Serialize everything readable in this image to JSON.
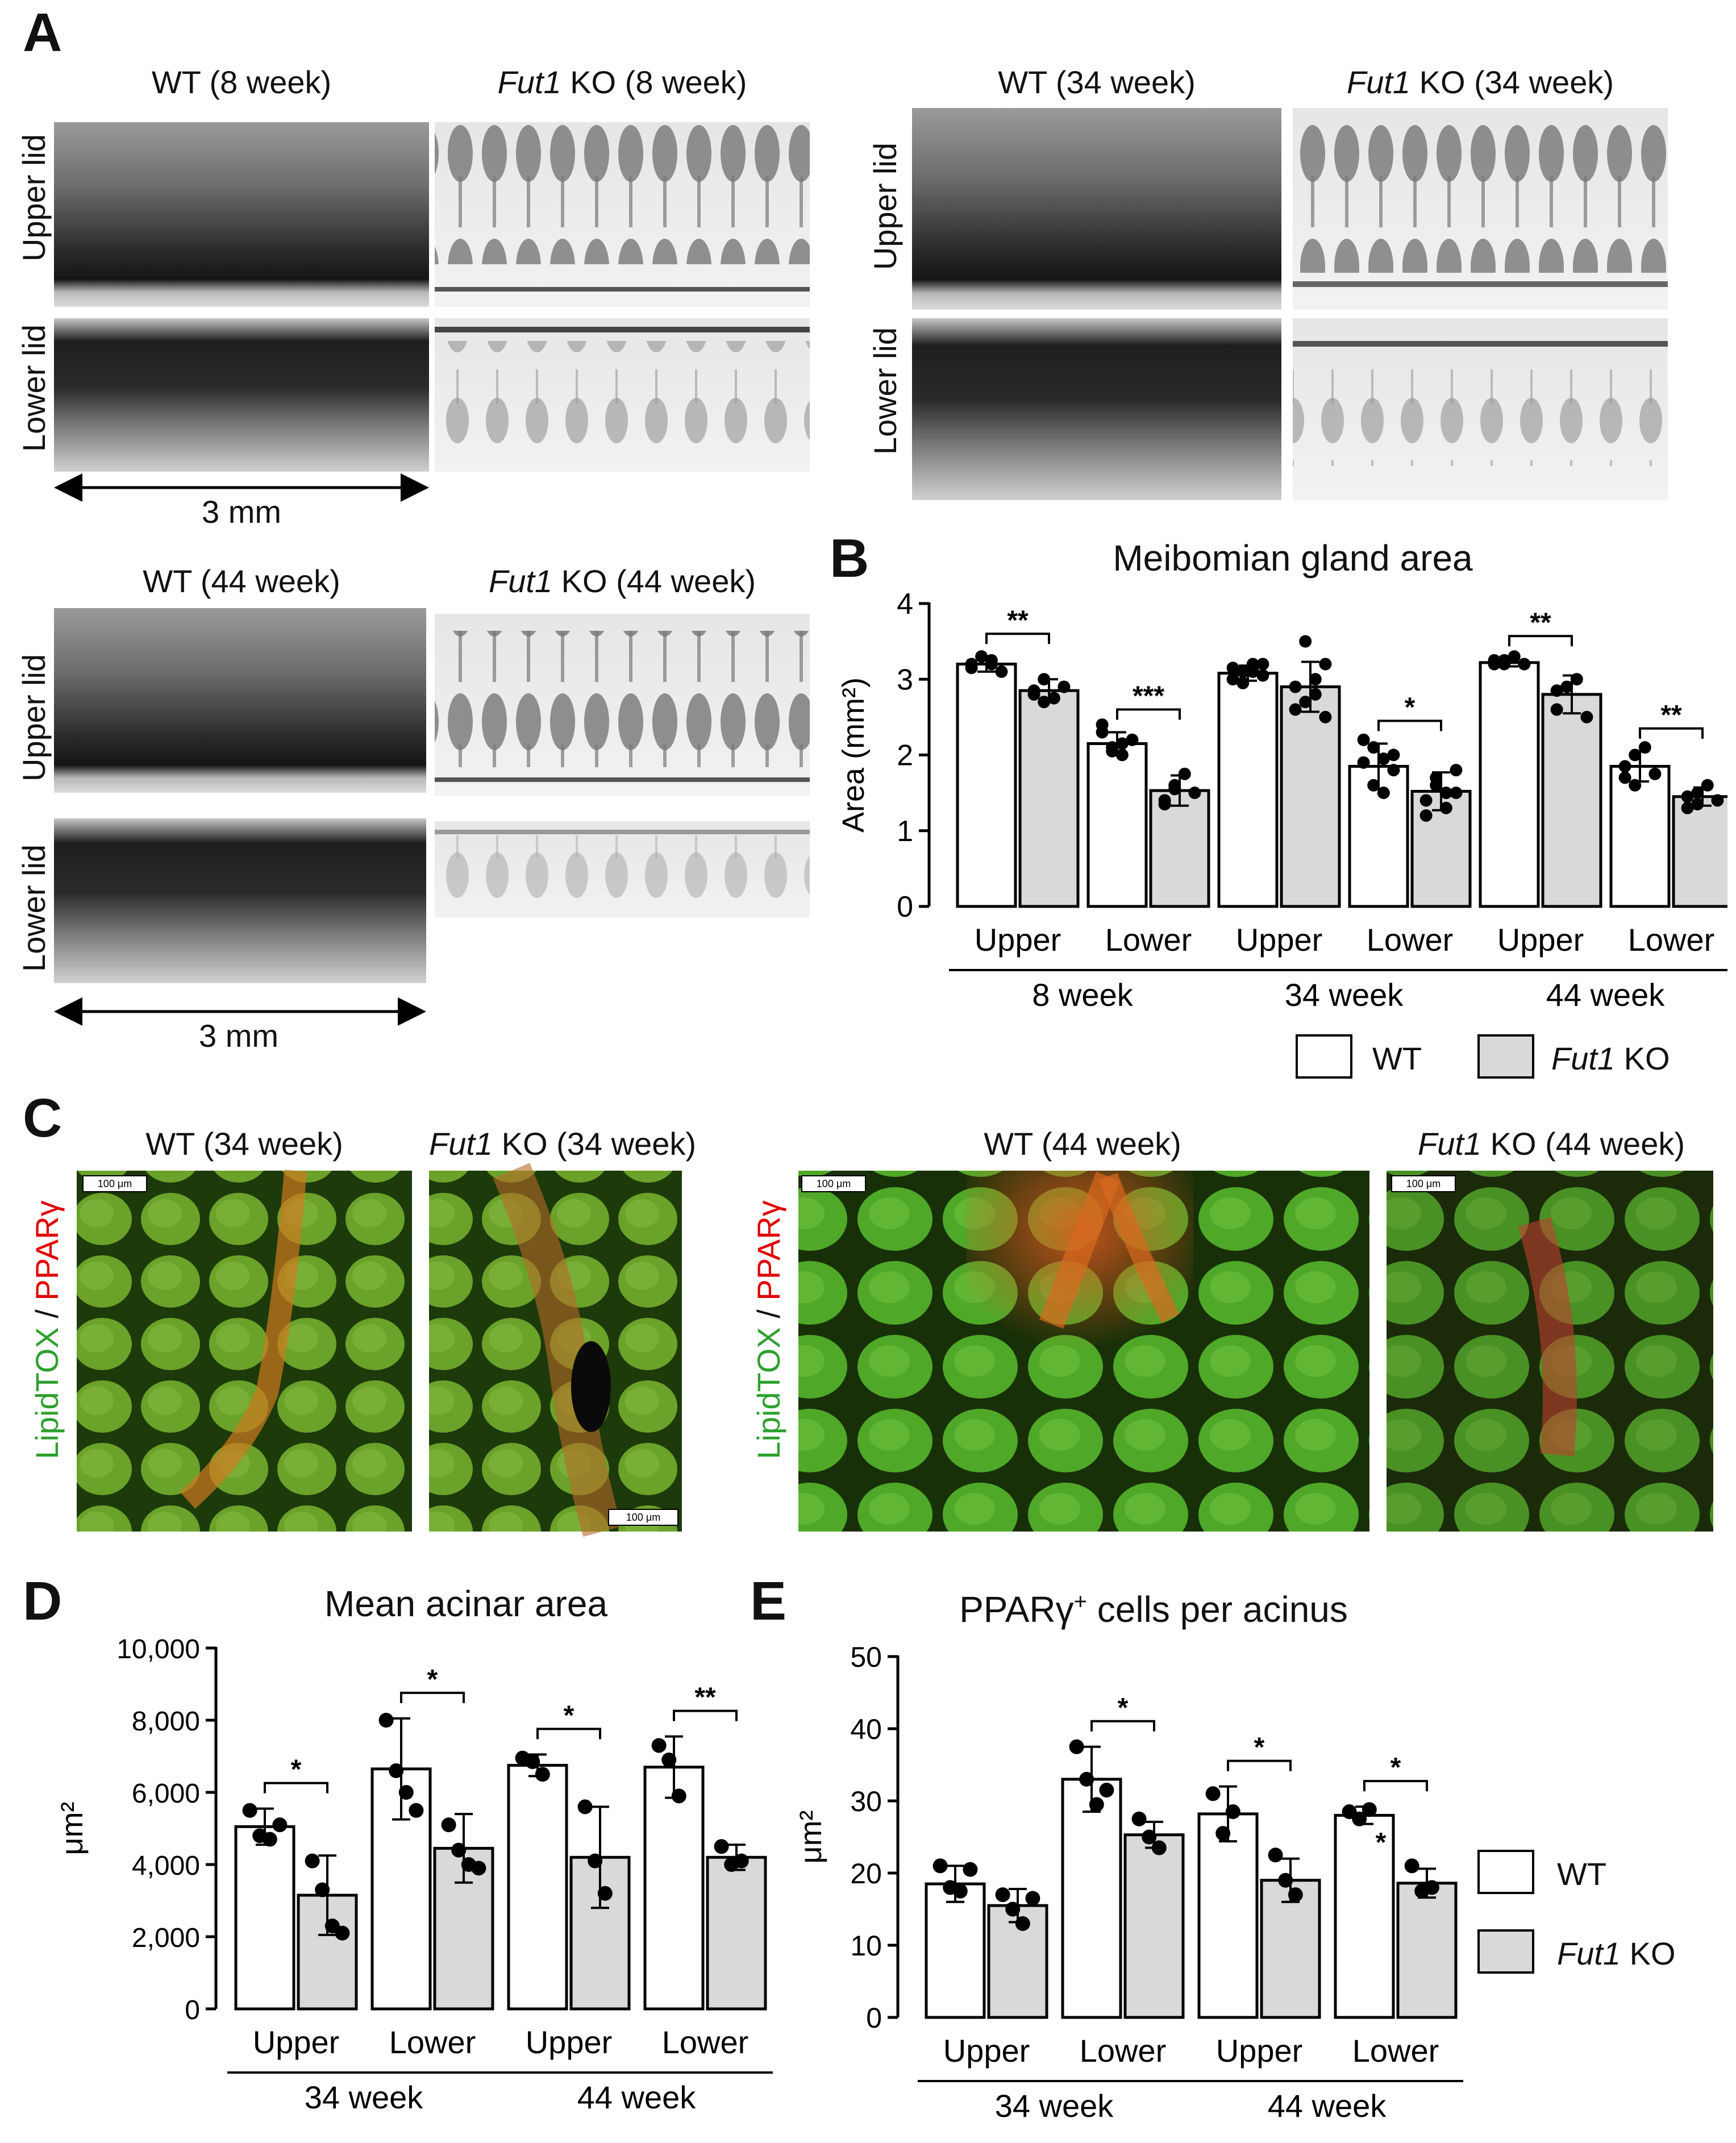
{
  "panelA": {
    "letter": "A",
    "titles": {
      "wt8": "WT (8 week)",
      "ko8_gene": "Fut1",
      "ko8_rest": " KO (8 week)",
      "wt34": "WT (34 week)",
      "ko34_gene": "Fut1",
      "ko34_rest": " KO (34 week)",
      "wt44": "WT (44 week)",
      "ko44_gene": "Fut1",
      "ko44_rest": " KO (44 week)"
    },
    "row_labels": {
      "upper": "Upper lid",
      "lower": "Lower lid"
    },
    "scale": "3 mm"
  },
  "panelB": {
    "letter": "B",
    "title": "Meibomian gland area",
    "legend": {
      "wt": "WT",
      "ko_gene": "Fut1",
      "ko_rest": " KO"
    }
  },
  "panelC": {
    "letter": "C",
    "titles": {
      "wt34": "WT (34 week)",
      "ko34_gene": "Fut1",
      "ko34_rest": " KO (34 week)",
      "wt44": "WT (44 week)",
      "ko44_gene": "Fut1",
      "ko44_rest": " KO (44 week)"
    },
    "stain_green": "LipidTOX",
    "stain_sep": " / ",
    "stain_red": "PPARγ",
    "scalebar": "100 μm"
  },
  "panelD": {
    "letter": "D",
    "title": "Mean acinar area"
  },
  "panelE": {
    "letter": "E",
    "title": "PPARγ",
    "title_sup": "+",
    "title_rest": " cells per acinus",
    "legend": {
      "wt": "WT",
      "ko_gene": "Fut1",
      "ko_rest": " KO"
    }
  },
  "chart_data": [
    {
      "id": "B",
      "type": "bar",
      "ylabel": "Area (mm²)",
      "ylim": [
        0,
        4
      ],
      "yticks": [
        0,
        1,
        2,
        3,
        4
      ],
      "groups": [
        {
          "label": "8 week",
          "subgroups": [
            "Upper",
            "Lower"
          ]
        },
        {
          "label": "34 week",
          "subgroups": [
            "Upper",
            "Lower"
          ]
        },
        {
          "label": "44 week",
          "subgroups": [
            "Upper",
            "Lower"
          ]
        }
      ],
      "series": [
        {
          "name": "WT",
          "color": "#ffffff",
          "values": [
            3.2,
            2.15,
            3.08,
            1.85,
            3.22,
            1.85
          ],
          "err": [
            0.1,
            0.15,
            0.1,
            0.3,
            0.05,
            0.2
          ]
        },
        {
          "name": "Fut1 KO",
          "color": "#d9d9d9",
          "values": [
            2.85,
            1.53,
            2.9,
            1.52,
            2.8,
            1.45
          ],
          "err": [
            0.15,
            0.2,
            0.33,
            0.25,
            0.25,
            0.12
          ]
        }
      ],
      "points": {
        "WT": [
          [
            3.2,
            3.3,
            3.25,
            3.1,
            3.15,
            3.3,
            3.2
          ],
          [
            2.3,
            2.1,
            2.0,
            2.2,
            2.4,
            2.05,
            2.15
          ],
          [
            3.0,
            3.1,
            3.2,
            3.05,
            3.15,
            2.95,
            3.1,
            3.2
          ],
          [
            1.9,
            2.1,
            1.5,
            1.8,
            2.2,
            1.6,
            1.95,
            2.0
          ],
          [
            3.2,
            3.25,
            3.3,
            3.2,
            3.25,
            3.2
          ],
          [
            1.7,
            2.0,
            2.1,
            1.75,
            1.85,
            1.6
          ]
        ],
        "Fut1 KO": [
          [
            2.8,
            3.0,
            2.75,
            2.9,
            2.85,
            2.7
          ],
          [
            1.4,
            1.6,
            1.75,
            1.5,
            1.35,
            1.55
          ],
          [
            2.6,
            3.5,
            2.8,
            3.2,
            2.9,
            2.7,
            3.0,
            2.5
          ],
          [
            1.2,
            1.7,
            1.5,
            1.8,
            1.4,
            1.6,
            1.3,
            1.5
          ],
          [
            2.6,
            2.9,
            3.0,
            2.5,
            2.85
          ],
          [
            1.3,
            1.5,
            1.6,
            1.4,
            1.45,
            1.35
          ]
        ]
      },
      "significance": [
        "**",
        "***",
        "",
        "*",
        "**",
        "**"
      ]
    },
    {
      "id": "D",
      "type": "bar",
      "ylabel": "μm²",
      "ylim": [
        0,
        10000
      ],
      "yticks": [
        "0",
        "2,000",
        "4,000",
        "6,000",
        "8,000",
        "10,000"
      ],
      "groups": [
        {
          "label": "34 week",
          "subgroups": [
            "Upper",
            "Lower"
          ]
        },
        {
          "label": "44 week",
          "subgroups": [
            "Upper",
            "Lower"
          ]
        }
      ],
      "series": [
        {
          "name": "WT",
          "color": "#ffffff",
          "values": [
            5050,
            6650,
            6750,
            6700
          ],
          "err": [
            500,
            1400,
            300,
            850
          ]
        },
        {
          "name": "Fut1 KO",
          "color": "#d9d9d9",
          "values": [
            3150,
            4450,
            4200,
            4200
          ],
          "err": [
            1100,
            950,
            1400,
            350
          ]
        }
      ],
      "points": {
        "WT": [
          [
            5500,
            4800,
            4700,
            5100
          ],
          [
            8000,
            6600,
            6000,
            5500
          ],
          [
            6950,
            6850,
            6500
          ],
          [
            7300,
            6900,
            5900
          ]
        ],
        "Fut1 KO": [
          [
            4100,
            3300,
            2300,
            2100
          ],
          [
            5100,
            4400,
            4000,
            3900
          ],
          [
            5600,
            4100,
            3200
          ],
          [
            4500,
            4000,
            4100
          ]
        ]
      },
      "significance": [
        "*",
        "*",
        "*",
        "**"
      ]
    },
    {
      "id": "E",
      "type": "bar",
      "ylabel": "μm²",
      "ylim": [
        0,
        50
      ],
      "yticks": [
        0,
        10,
        20,
        30,
        40,
        50
      ],
      "groups": [
        {
          "label": "34 week",
          "subgroups": [
            "Upper",
            "Lower"
          ]
        },
        {
          "label": "44 week",
          "subgroups": [
            "Upper",
            "Lower"
          ]
        }
      ],
      "series": [
        {
          "name": "WT",
          "color": "#ffffff",
          "values": [
            18.5,
            33,
            28.2,
            28
          ],
          "err": [
            2.5,
            4.5,
            3.8,
            1.2
          ]
        },
        {
          "name": "Fut1 KO",
          "color": "#d9d9d9",
          "values": [
            15.5,
            25.3,
            19,
            18.6
          ],
          "err": [
            2.3,
            1.8,
            3.0,
            2.0
          ]
        }
      ],
      "points": {
        "WT": [
          [
            21,
            18,
            17.5,
            20.5
          ],
          [
            37.5,
            33,
            29.5,
            31.5
          ],
          [
            31,
            25.5,
            28.5
          ],
          [
            28.5,
            27.5,
            28.8
          ]
        ],
        "Fut1 KO": [
          [
            17,
            15,
            13,
            16.5
          ],
          [
            27.5,
            25,
            23.5
          ],
          [
            22.5,
            19,
            17
          ],
          [
            21,
            17.5,
            18
          ]
        ]
      },
      "significance": [
        "",
        "*",
        "*",
        "*"
      ],
      "extra_star": "*"
    }
  ]
}
